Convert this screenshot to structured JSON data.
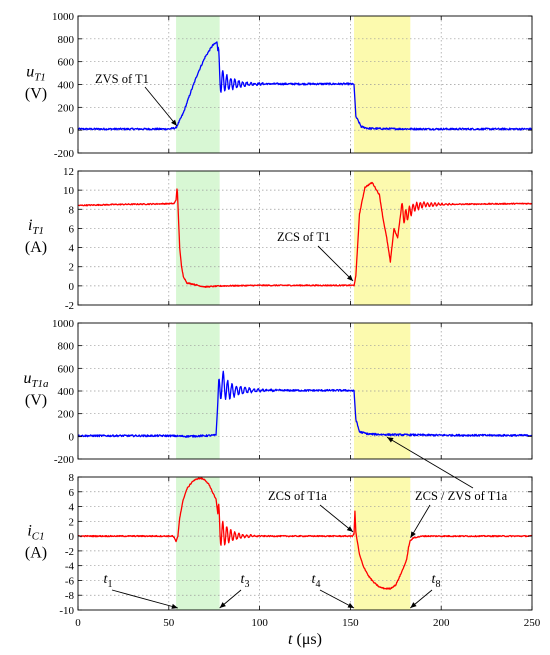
{
  "chart_data": [
    {
      "type": "line",
      "ylabel": {
        "symbol": "u",
        "sub": "T1",
        "unit": "(V)"
      },
      "ylim": [
        -200,
        1000
      ],
      "yticks": [
        -200,
        0,
        200,
        400,
        600,
        800,
        1000
      ],
      "xlim": [
        0,
        250
      ],
      "grid": true,
      "series": [
        {
          "color": "#0000ff",
          "x": [
            0,
            50,
            54,
            58,
            62,
            66,
            70,
            74,
            76.5,
            77,
            78,
            80,
            85,
            90,
            100,
            110,
            120,
            130,
            140,
            150,
            152,
            153,
            156,
            160,
            170,
            190,
            250
          ],
          "y": [
            10,
            10,
            20,
            150,
            330,
            500,
            640,
            740,
            770,
            700,
            460,
            420,
            405,
            405,
            405,
            405,
            405,
            405,
            405,
            405,
            400,
            120,
            30,
            15,
            12,
            10,
            10
          ]
        }
      ],
      "annotations": [
        {
          "text": "ZVS of T1",
          "x": 55,
          "y": 20
        }
      ]
    },
    {
      "type": "line",
      "ylabel": {
        "symbol": "i",
        "sub": "T1",
        "unit": "(A)"
      },
      "ylim": [
        -2,
        12
      ],
      "yticks": [
        -2,
        0,
        2,
        4,
        6,
        8,
        10,
        12
      ],
      "xlim": [
        0,
        250
      ],
      "grid": true,
      "series": [
        {
          "color": "#ff0000",
          "x": [
            0,
            20,
            40,
            53,
            54,
            54.6,
            55,
            56,
            57,
            58,
            60,
            63,
            67,
            70,
            75,
            80,
            100,
            120,
            140,
            152,
            153,
            155,
            158,
            162,
            166,
            168,
            170,
            172,
            174,
            176,
            178,
            180,
            185,
            190,
            200,
            220,
            250
          ],
          "y": [
            8.4,
            8.5,
            8.55,
            8.6,
            9.0,
            10.4,
            8.6,
            4.0,
            2.0,
            1.0,
            0.3,
            0.2,
            0.0,
            -0.1,
            -0.05,
            0.0,
            0.05,
            0.05,
            0.05,
            0.05,
            1.0,
            7.5,
            10.3,
            10.8,
            9.5,
            7.0,
            5.0,
            2.5,
            6.0,
            5.0,
            8.0,
            7.2,
            8.2,
            8.5,
            8.5,
            8.55,
            8.6
          ]
        }
      ],
      "annotations": [
        {
          "text": "ZCS of T1",
          "x": 152,
          "y": 0.3
        }
      ]
    },
    {
      "type": "line",
      "ylabel": {
        "symbol": "u",
        "sub": "T1a",
        "unit": "(V)"
      },
      "ylim": [
        -200,
        1000
      ],
      "yticks": [
        -200,
        0,
        200,
        400,
        600,
        800,
        1000
      ],
      "xlim": [
        0,
        250
      ],
      "grid": true,
      "series": [
        {
          "color": "#0000ff",
          "x": [
            0,
            50,
            60,
            70,
            76,
            77,
            79,
            82,
            85,
            90,
            100,
            110,
            120,
            130,
            140,
            150,
            152,
            153,
            155,
            160,
            170,
            200,
            250
          ],
          "y": [
            5,
            5,
            0,
            5,
            10,
            300,
            480,
            410,
            400,
            405,
            405,
            405,
            405,
            405,
            405,
            405,
            400,
            150,
            40,
            20,
            15,
            10,
            8
          ]
        }
      ],
      "annotations": [
        {
          "text": "ZCS / ZVS of T1a",
          "x": 168,
          "y": 10
        }
      ]
    },
    {
      "type": "line",
      "ylabel": {
        "symbol": "i",
        "sub": "C1",
        "unit": "(A)"
      },
      "ylim": [
        -10,
        8
      ],
      "yticks": [
        -10,
        -8,
        -6,
        -4,
        -2,
        0,
        2,
        4,
        6,
        8
      ],
      "xlim": [
        0,
        250
      ],
      "xlabel": {
        "symbol": "t",
        "unit": "(μs)"
      },
      "xticks": [
        0,
        50,
        100,
        150,
        200,
        250
      ],
      "grid": true,
      "series": [
        {
          "color": "#ff0000",
          "x": [
            0,
            40,
            52,
            53,
            54,
            55,
            56,
            58,
            60,
            63,
            66,
            68,
            70,
            72,
            74,
            76,
            77,
            78,
            80,
            85,
            90,
            95,
            100,
            120,
            140,
            151,
            152,
            152.5,
            153,
            155,
            157,
            160,
            163,
            166,
            169,
            172,
            175,
            178,
            181,
            182,
            183,
            185,
            190,
            220,
            250
          ],
          "y": [
            0.0,
            0.0,
            0.0,
            -0.2,
            -0.8,
            0.0,
            2.5,
            5.0,
            6.4,
            7.4,
            7.8,
            7.8,
            7.6,
            7.0,
            6.0,
            5.0,
            3.0,
            1.0,
            0.2,
            0.05,
            0.0,
            0.0,
            0.0,
            0.0,
            0.0,
            0.0,
            0.3,
            3.4,
            0.5,
            -2.5,
            -4.0,
            -5.4,
            -6.3,
            -6.9,
            -7.1,
            -7.1,
            -6.6,
            -5.0,
            -3.2,
            -1.5,
            -0.6,
            -0.2,
            0.0,
            0.0,
            0.0
          ]
        }
      ],
      "annotations": [
        {
          "text": "ZCS of T1a",
          "x": 152,
          "y": 0.3
        },
        {
          "text": "ZCS / ZVS of T1a",
          "x": 182,
          "y": -0.5
        }
      ],
      "time_markers": [
        {
          "label": "t",
          "sub": "1",
          "x": 55
        },
        {
          "label": "t",
          "sub": "3",
          "x": 78
        },
        {
          "label": "t",
          "sub": "4",
          "x": 152
        },
        {
          "label": "t",
          "sub": "8",
          "x": 183
        }
      ]
    }
  ],
  "shading": [
    {
      "from": 54,
      "to": 78,
      "color": "#d8f7d4"
    },
    {
      "from": 152,
      "to": 183,
      "color": "#fcfaae"
    }
  ],
  "ringing": [
    {
      "panel": 0,
      "start": 77,
      "end": 108,
      "amp": 140,
      "period": 2.2,
      "decay": 7
    },
    {
      "panel": 1,
      "start": 178,
      "end": 212,
      "amp": 0.9,
      "period": 2.0,
      "decay": 10
    },
    {
      "panel": 2,
      "start": 77,
      "end": 115,
      "amp": 160,
      "period": 2.4,
      "decay": 8
    },
    {
      "panel": 3,
      "start": 77,
      "end": 100,
      "amp": 2.6,
      "period": 2.2,
      "decay": 6
    }
  ],
  "noise": [
    8,
    0.06,
    8,
    0.08
  ]
}
